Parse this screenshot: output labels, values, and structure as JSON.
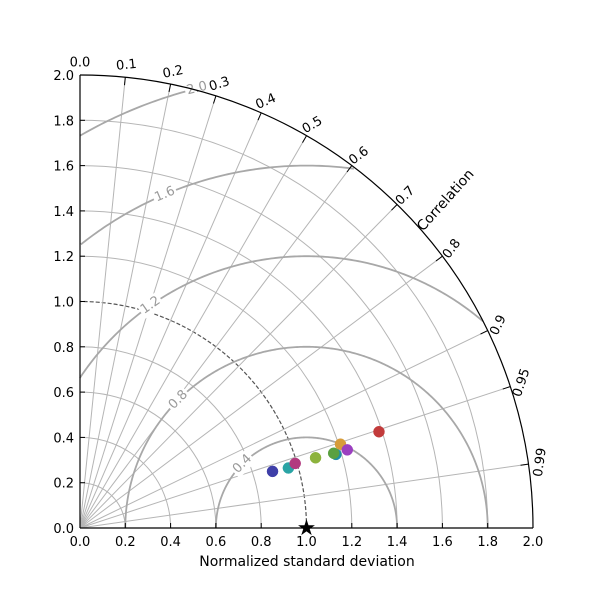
{
  "chart_data": {
    "type": "scatter",
    "subtype": "taylor-diagram",
    "title": "",
    "xlabel": "Normalized standard deviation",
    "arc_label": "Correlation",
    "std_range": [
      0,
      2.0
    ],
    "std_ticks": [
      "0.0",
      "0.2",
      "0.4",
      "0.6",
      "0.8",
      "1.0",
      "1.2",
      "1.4",
      "1.6",
      "1.8",
      "2.0"
    ],
    "correlation_ticks": [
      0.0,
      0.1,
      0.2,
      0.3,
      0.4,
      0.5,
      0.6,
      0.7,
      0.8,
      0.9,
      0.95,
      0.99
    ],
    "correlation_tick_labels": [
      "0.0",
      "0.1",
      "0.2",
      "0.3",
      "0.4",
      "0.5",
      "0.6",
      "0.7",
      "0.8",
      "0.9",
      "0.95",
      "0.99"
    ],
    "rms_contours": [
      0.4,
      0.8,
      1.2,
      1.6,
      2.0
    ],
    "rms_labels": [
      "0.4",
      "0.8",
      "1.2",
      "1.6",
      "2.0"
    ],
    "reference": {
      "std": 1.0,
      "marker": "★"
    },
    "points": [
      {
        "x": 0.85,
        "y": 0.25,
        "color": "#3e3fa8"
      },
      {
        "x": 0.92,
        "y": 0.265,
        "color": "#2aa4a5"
      },
      {
        "x": 0.95,
        "y": 0.285,
        "color": "#b23a7f"
      },
      {
        "x": 1.04,
        "y": 0.31,
        "color": "#8db33d"
      },
      {
        "x": 1.13,
        "y": 0.325,
        "color": "#1f8fa8"
      },
      {
        "x": 1.12,
        "y": 0.33,
        "color": "#5aa040"
      },
      {
        "x": 1.15,
        "y": 0.37,
        "color": "#d79c3a"
      },
      {
        "x": 1.18,
        "y": 0.345,
        "color": "#9b3fc0"
      },
      {
        "x": 1.32,
        "y": 0.425,
        "color": "#c23b3b"
      }
    ],
    "colors": {
      "grid": "#b5b5b5",
      "rms": "#a8a8a8",
      "ref_circle": "#555555",
      "axis": "#000000"
    }
  }
}
